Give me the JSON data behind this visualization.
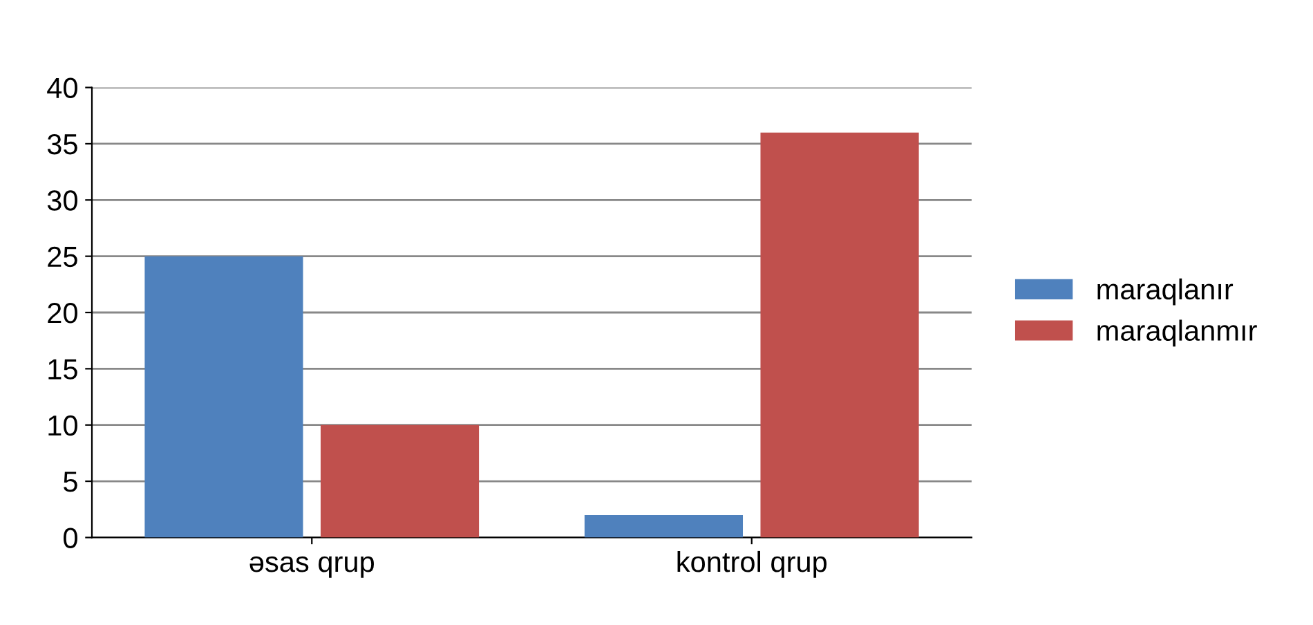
{
  "chart_data": {
    "type": "bar",
    "categories": [
      "əsas qrup",
      "kontrol qrup"
    ],
    "series": [
      {
        "name": "maraqlanır",
        "color": "#4f81bd",
        "values": [
          25,
          2
        ]
      },
      {
        "name": "maraqlanmır",
        "color": "#c0504d",
        "values": [
          10,
          36
        ]
      }
    ],
    "ylim": [
      0,
      40
    ],
    "yticks": [
      0,
      5,
      10,
      15,
      20,
      25,
      30,
      35,
      40
    ],
    "grid": "y",
    "legend": "right"
  }
}
